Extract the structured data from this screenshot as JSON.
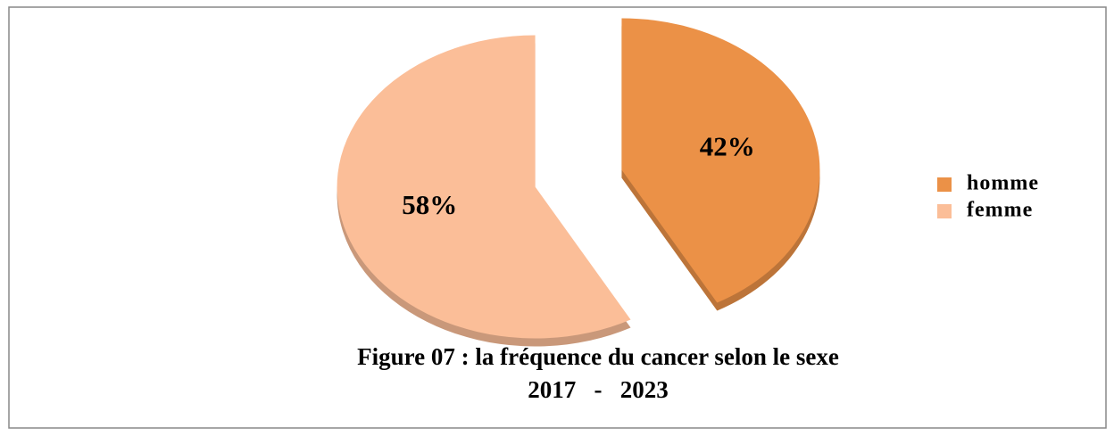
{
  "chart_data": {
    "type": "pie",
    "title": "Figure 07 : la fréquence du cancer selon le sexe",
    "subtitle": "2017   -   2023",
    "categories": [
      "homme",
      "femme"
    ],
    "values": [
      42,
      58
    ],
    "value_labels": [
      "42%",
      "58%"
    ],
    "colors": [
      "#eb9147",
      "#fbbe98"
    ],
    "legend": "right"
  }
}
